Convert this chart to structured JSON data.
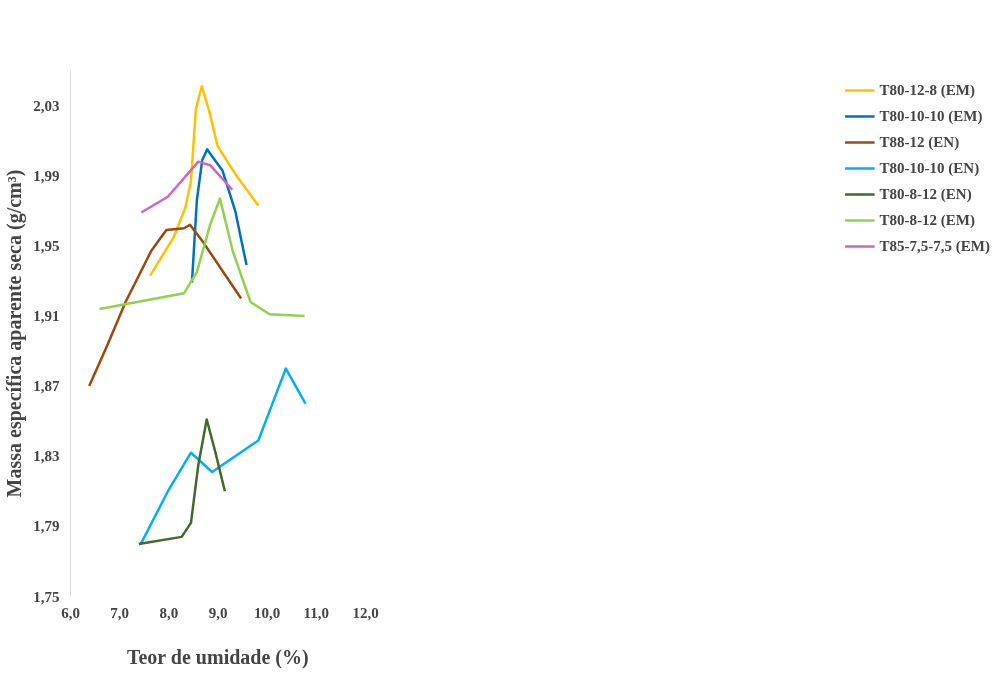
{
  "chart_data": {
    "type": "line",
    "xlabel": "Teor de umidade (%)",
    "ylabel": "Massa específica aparente seca (g/cm³)",
    "xlim": [
      6.0,
      12.0
    ],
    "ylim": [
      1.75,
      2.05
    ],
    "xticks": [
      {
        "value": 6,
        "label": "6,0"
      },
      {
        "value": 7,
        "label": "7,0"
      },
      {
        "value": 8,
        "label": "8,0"
      },
      {
        "value": 9,
        "label": "9,0"
      },
      {
        "value": 10,
        "label": "10,0"
      },
      {
        "value": 11,
        "label": "11,0"
      },
      {
        "value": 12,
        "label": "12,0"
      }
    ],
    "yticks": [
      {
        "value": 1.75,
        "label": "1,75"
      },
      {
        "value": 1.79,
        "label": "1,79"
      },
      {
        "value": 1.83,
        "label": "1,83"
      },
      {
        "value": 1.87,
        "label": "1,87"
      },
      {
        "value": 1.91,
        "label": "1,91"
      },
      {
        "value": 1.95,
        "label": "1,95"
      },
      {
        "value": 1.99,
        "label": "1,99"
      },
      {
        "value": 2.03,
        "label": "2,03"
      }
    ],
    "grid": false,
    "legend": "top right",
    "marker": "none",
    "line_style": "solid",
    "series": [
      {
        "name": "T80-12-8 (EM)",
        "color": "#ffc000",
        "x": [
          7.62,
          8.1,
          8.34,
          8.45,
          8.55,
          8.67,
          8.81,
          8.99,
          9.35,
          9.82
        ],
        "values": [
          1.933,
          1.955,
          1.972,
          1.987,
          2.028,
          2.041,
          2.028,
          2.007,
          1.991,
          1.973
        ]
      },
      {
        "name": "T80-10-10 (EM)",
        "color": "#0070c0",
        "x": [
          8.47,
          8.57,
          8.68,
          8.78,
          9.09,
          9.35,
          9.58
        ],
        "values": [
          1.929,
          1.976,
          1.999,
          2.005,
          1.993,
          1.97,
          1.939
        ]
      },
      {
        "name": "T88-12 (EN)",
        "color": "#9e480e",
        "x": [
          6.38,
          6.76,
          7.12,
          7.64,
          7.95,
          8.31,
          8.43,
          8.7,
          9.47
        ],
        "values": [
          1.87,
          1.894,
          1.918,
          1.947,
          1.959,
          1.96,
          1.962,
          1.952,
          1.92
        ]
      },
      {
        "name": "T80-10-10 (EN)",
        "color": "#00b0f0",
        "x": [
          7.43,
          8.0,
          8.45,
          8.88,
          9.82,
          10.08,
          10.38,
          10.78
        ],
        "values": [
          1.78,
          1.811,
          1.832,
          1.821,
          1.839,
          1.858,
          1.88,
          1.86
        ]
      },
      {
        "name": "T80-8-12 (EN)",
        "color": "#43682b",
        "x": [
          7.39,
          8.26,
          8.45,
          8.6,
          8.77,
          8.94,
          9.14
        ],
        "values": [
          1.78,
          1.784,
          1.792,
          1.825,
          1.851,
          1.833,
          1.81
        ]
      },
      {
        "name": "T80-8-12 (EM)",
        "color": "#92d050",
        "x": [
          6.59,
          8.31,
          8.57,
          8.84,
          9.04,
          9.3,
          9.66,
          10.05,
          10.76
        ],
        "values": [
          1.914,
          1.923,
          1.935,
          1.962,
          1.977,
          1.947,
          1.918,
          1.911,
          1.91
        ]
      },
      {
        "name": "T85-7,5-7,5 (EM)",
        "color": "#d462c0",
        "x": [
          7.44,
          7.98,
          8.6,
          8.84,
          9.29
        ],
        "values": [
          1.969,
          1.978,
          1.998,
          1.996,
          1.982
        ]
      }
    ]
  }
}
